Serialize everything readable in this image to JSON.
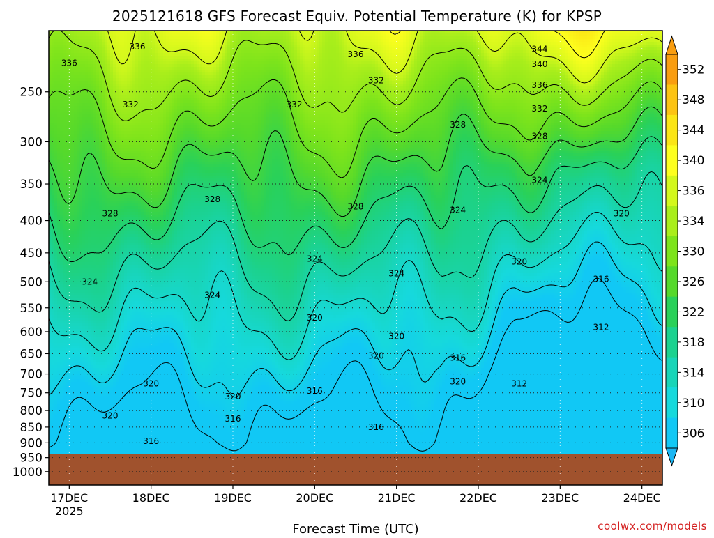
{
  "chart_data": {
    "type": "heatmap",
    "title": "2025121618 GFS Forecast Equiv. Potential Temperature (K) for KPSP",
    "xlabel": "Forecast Time (UTC)",
    "ylabel": "",
    "x_ticks": [
      {
        "date": "2025-12-17T00",
        "label": "17DEC",
        "sublabel": "2025"
      },
      {
        "date": "2025-12-18T00",
        "label": "18DEC",
        "sublabel": ""
      },
      {
        "date": "2025-12-19T00",
        "label": "19DEC",
        "sublabel": ""
      },
      {
        "date": "2025-12-20T00",
        "label": "20DEC",
        "sublabel": ""
      },
      {
        "date": "2025-12-21T00",
        "label": "21DEC",
        "sublabel": ""
      },
      {
        "date": "2025-12-22T00",
        "label": "22DEC",
        "sublabel": ""
      },
      {
        "date": "2025-12-23T00",
        "label": "23DEC",
        "sublabel": ""
      },
      {
        "date": "2025-12-24T00",
        "label": "24DEC",
        "sublabel": ""
      }
    ],
    "xlim": [
      "2025-12-16T18",
      "2025-12-24T06"
    ],
    "y_ticks": [
      250,
      300,
      350,
      400,
      450,
      500,
      550,
      600,
      650,
      700,
      750,
      800,
      850,
      900,
      950,
      1000
    ],
    "y_scale": "log",
    "y_inverted": true,
    "ylim": [
      1050,
      200
    ],
    "grid": true,
    "colorbar": {
      "labels": [
        352,
        348,
        344,
        340,
        336,
        334,
        330,
        326,
        322,
        318,
        314,
        310,
        306
      ],
      "colors": [
        "#f99d10",
        "#fcc312",
        "#fbe515",
        "#fdff1e",
        "#d3f81c",
        "#a9ee1b",
        "#7de41b",
        "#55d92b",
        "#29d159",
        "#1bd28f",
        "#18d5b8",
        "#16d9dc",
        "#11c8f5"
      ],
      "extend": "both",
      "placement": "right"
    },
    "surface_pressure": 938,
    "surface_color": "#a0522d",
    "contour_levels": [
      304,
      308,
      312,
      316,
      320,
      324,
      328,
      332,
      336,
      340,
      344,
      348
    ],
    "contour_labels": [
      {
        "date": "2025-12-17T00",
        "p": 225,
        "value": "336"
      },
      {
        "date": "2025-12-17T20",
        "p": 212,
        "value": "336"
      },
      {
        "date": "2025-12-20T12",
        "p": 218,
        "value": "336"
      },
      {
        "date": "2025-12-22T18",
        "p": 214,
        "value": "344"
      },
      {
        "date": "2025-12-22T18",
        "p": 226,
        "value": "340"
      },
      {
        "date": "2025-12-22T18",
        "p": 244,
        "value": "336"
      },
      {
        "date": "2025-12-22T18",
        "p": 266,
        "value": "332"
      },
      {
        "date": "2025-12-22T18",
        "p": 294,
        "value": "328"
      },
      {
        "date": "2025-12-22T18",
        "p": 345,
        "value": "324"
      },
      {
        "date": "2025-12-23T18",
        "p": 390,
        "value": "320"
      },
      {
        "date": "2025-12-17T18",
        "p": 262,
        "value": "332"
      },
      {
        "date": "2025-12-19T18",
        "p": 262,
        "value": "332"
      },
      {
        "date": "2025-12-20T18",
        "p": 240,
        "value": "332"
      },
      {
        "date": "2025-12-21T18",
        "p": 282,
        "value": "328"
      },
      {
        "date": "2025-12-17T12",
        "p": 390,
        "value": "328"
      },
      {
        "date": "2025-12-18T18",
        "p": 370,
        "value": "328"
      },
      {
        "date": "2025-12-20T12",
        "p": 380,
        "value": "328"
      },
      {
        "date": "2025-12-21T18",
        "p": 385,
        "value": "324"
      },
      {
        "date": "2025-12-20T00",
        "p": 460,
        "value": "324"
      },
      {
        "date": "2025-12-21T00",
        "p": 485,
        "value": "324"
      },
      {
        "date": "2025-12-17T06",
        "p": 500,
        "value": "324"
      },
      {
        "date": "2025-12-18T18",
        "p": 525,
        "value": "324"
      },
      {
        "date": "2025-12-22T12",
        "p": 465,
        "value": "320"
      },
      {
        "date": "2025-12-23T12",
        "p": 495,
        "value": "316"
      },
      {
        "date": "2025-12-20T00",
        "p": 570,
        "value": "320"
      },
      {
        "date": "2025-12-21T00",
        "p": 610,
        "value": "320"
      },
      {
        "date": "2025-12-20T18",
        "p": 655,
        "value": "320"
      },
      {
        "date": "2025-12-21T18",
        "p": 660,
        "value": "316"
      },
      {
        "date": "2025-12-21T18",
        "p": 720,
        "value": "320"
      },
      {
        "date": "2025-12-22T12",
        "p": 725,
        "value": "312"
      },
      {
        "date": "2025-12-23T12",
        "p": 590,
        "value": "312"
      },
      {
        "date": "2025-12-18T00",
        "p": 725,
        "value": "320"
      },
      {
        "date": "2025-12-19T00",
        "p": 760,
        "value": "320"
      },
      {
        "date": "2025-12-20T00",
        "p": 745,
        "value": "316"
      },
      {
        "date": "2025-12-17T12",
        "p": 815,
        "value": "320"
      },
      {
        "date": "2025-12-19T00",
        "p": 825,
        "value": "316"
      },
      {
        "date": "2025-12-20T18",
        "p": 850,
        "value": "316"
      },
      {
        "date": "2025-12-18T00",
        "p": 895,
        "value": "316"
      }
    ],
    "credit": "coolwx.com/models"
  }
}
